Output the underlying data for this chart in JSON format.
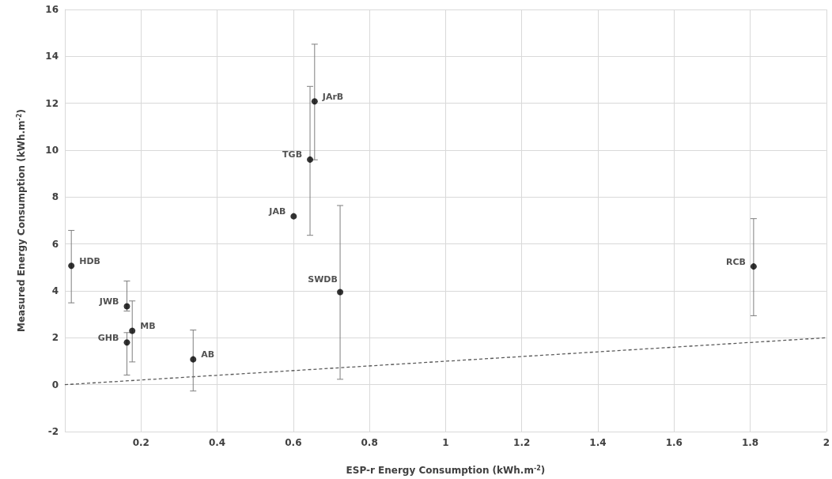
{
  "chart_data": {
    "type": "scatter",
    "xlabel": "ESP-r Energy Consumption (kWh.m$^{-2}$)",
    "ylabel": "Measured Energy Consumption (kWh.m$^{-2}$)",
    "series": [
      {
        "color": "#000000",
        "marker": "circle",
        "x": [
          0.017,
          0.163,
          0.163,
          0.177,
          0.337,
          0.601,
          0.644,
          0.656,
          0.723,
          1.809
        ],
        "values": [
          5.07,
          3.34,
          1.8,
          2.3,
          1.08,
          7.18,
          9.6,
          12.08,
          3.95,
          5.04
        ],
        "errors": [
          [
            3.49,
            6.58
          ],
          [
            3.14,
            4.42
          ],
          [
            0.41,
            2.22
          ],
          [
            0.97,
            3.57
          ],
          [
            -0.27,
            2.33
          ],
          null,
          [
            6.37,
            12.72
          ],
          [
            9.59,
            14.52
          ],
          [
            0.23,
            7.64
          ],
          [
            2.94,
            7.08
          ]
        ]
      },
      {
        "type": "line",
        "color": "#595959",
        "line_style": "dashed",
        "marker": "none",
        "x": [
          0,
          2
        ],
        "values": [
          0,
          2
        ]
      }
    ],
    "annotations": [
      {
        "text": "HDB",
        "x": 0.017,
        "y": 5.07
      },
      {
        "text": "JWB",
        "x": 0.163,
        "y": 3.34
      },
      {
        "text": "GHB",
        "x": 0.163,
        "y": 1.8
      },
      {
        "text": "MB",
        "x": 0.177,
        "y": 2.3
      },
      {
        "text": "AB",
        "x": 0.337,
        "y": 1.08
      },
      {
        "text": "JAB",
        "x": 0.601,
        "y": 7.18
      },
      {
        "text": "TGB",
        "x": 0.644,
        "y": 9.6
      },
      {
        "text": "JArB",
        "x": 0.656,
        "y": 12.08
      },
      {
        "text": "SWDB",
        "x": 0.723,
        "y": 3.95
      },
      {
        "text": "RCB",
        "x": 1.809,
        "y": 5.04
      }
    ],
    "xlim": [
      0,
      2
    ],
    "xticks": [
      0.2,
      0.4,
      0.6,
      0.8,
      1,
      1.2,
      1.4,
      1.6,
      1.8,
      2
    ],
    "ylim": [
      -2,
      16
    ],
    "yticks": [
      -2,
      0,
      2,
      4,
      6,
      8,
      10,
      12,
      14,
      16
    ],
    "grid": true
  }
}
